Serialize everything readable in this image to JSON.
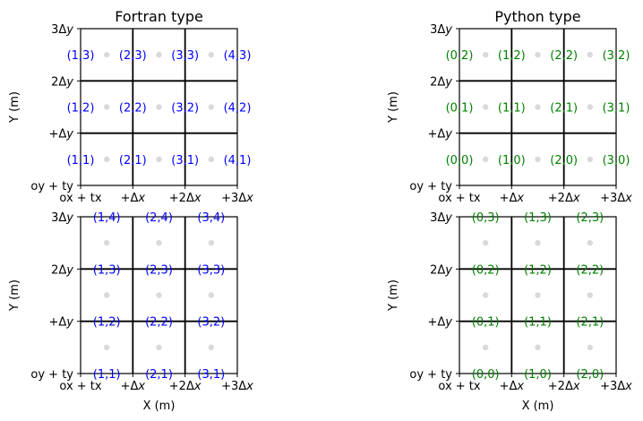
{
  "colors": {
    "frame": "#000000",
    "grid": "#000000",
    "dot": "#d9d9d9",
    "blue": "#0000ff",
    "green": "#008000"
  },
  "panels": [
    {
      "id": "fortran-top",
      "title": "Fortran type",
      "ylabel": "Y (m)",
      "xlabel": "",
      "xticks": [
        "ox + tx",
        "+Δx",
        "+2Δx",
        "+3Δx"
      ],
      "yticks": [
        "oy + ty",
        "+Δy",
        "2Δy",
        "3Δy"
      ],
      "label_color": "blue",
      "label_position": "cell-center",
      "labels": [
        [
          "(1,1)",
          "(2,1)",
          "(3,1)",
          "(4,1)"
        ],
        [
          "(1,2)",
          "(2,2)",
          "(3,2)",
          "(4,2)"
        ],
        [
          "(1,3)",
          "(2,3)",
          "(3,3)",
          "(4,3)"
        ]
      ]
    },
    {
      "id": "python-top",
      "title": "Python type",
      "ylabel": "Y (m)",
      "xlabel": "",
      "xticks": [
        "ox + tx",
        "+Δx",
        "+2Δx",
        "+3Δx"
      ],
      "yticks": [
        "oy + ty",
        "+Δy",
        "2Δy",
        "3Δy"
      ],
      "label_color": "green",
      "label_position": "cell-center",
      "labels": [
        [
          "(0,0)",
          "(1,0)",
          "(2,0)",
          "(3,0)"
        ],
        [
          "(0,1)",
          "(1,1)",
          "(2,1)",
          "(3,1)"
        ],
        [
          "(0,2)",
          "(1,2)",
          "(2,2)",
          "(3,2)"
        ]
      ]
    },
    {
      "id": "fortran-bottom",
      "title": "",
      "ylabel": "Y (m)",
      "xlabel": "X (m)",
      "xticks": [
        "ox + tx",
        "+Δx",
        "+2Δx",
        "+3Δx"
      ],
      "yticks": [
        "oy + ty",
        "+Δy",
        "2Δy",
        "3Δy"
      ],
      "label_color": "blue",
      "label_position": "node",
      "labels": [
        [
          "(1,1)",
          "(2,1)",
          "(3,1)"
        ],
        [
          "(1,2)",
          "(2,2)",
          "(3,2)"
        ],
        [
          "(1,3)",
          "(2,3)",
          "(3,3)"
        ],
        [
          "(1,4)",
          "(2,4)",
          "(3,4)"
        ]
      ]
    },
    {
      "id": "python-bottom",
      "title": "",
      "ylabel": "Y (m)",
      "xlabel": "X (m)",
      "xticks": [
        "ox + tx",
        "+Δx",
        "+2Δx",
        "+3Δx"
      ],
      "yticks": [
        "oy + ty",
        "+Δy",
        "2Δy",
        "3Δy"
      ],
      "label_color": "green",
      "label_position": "node",
      "labels": [
        [
          "(0,0)",
          "(1,0)",
          "(2,0)"
        ],
        [
          "(0,1)",
          "(1,1)",
          "(2,1)"
        ],
        [
          "(0,2)",
          "(1,2)",
          "(2,2)"
        ],
        [
          "(0,3)",
          "(1,3)",
          "(2,3)"
        ]
      ]
    }
  ]
}
